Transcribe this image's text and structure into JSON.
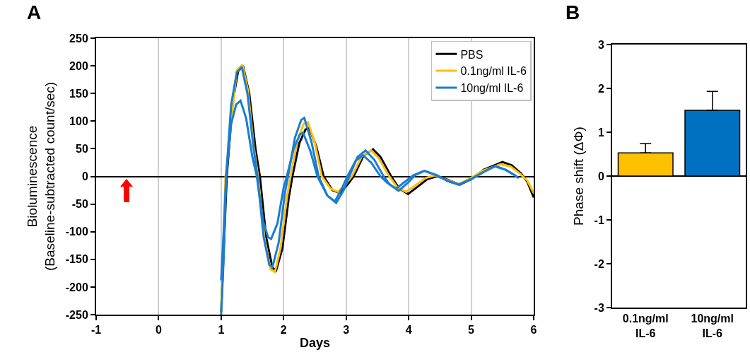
{
  "chart_data": [
    {
      "type": "line",
      "title": "A",
      "xlabel": "Days",
      "ylabel": "Bioluminescence\n(Baseline-subtracted count/sec)",
      "xlim": [
        -1,
        6
      ],
      "xticks": [
        -1,
        0,
        1,
        2,
        3,
        4,
        5,
        6
      ],
      "ylim": [
        -250,
        250
      ],
      "yticks": [
        -250,
        -200,
        -150,
        -100,
        -50,
        0,
        50,
        100,
        150,
        200,
        250
      ],
      "grid": "x",
      "legend": "top right",
      "series": [
        {
          "name": "PBS",
          "color": "#000000",
          "x": [
            1,
            1.09,
            1.18,
            1.27,
            1.35,
            1.45,
            1.55,
            1.62,
            1.72,
            1.82,
            1.88,
            1.98,
            2.08,
            2.14,
            2.25,
            2.35,
            2.41,
            2.52,
            2.64,
            2.78,
            2.9,
            3.02,
            3.12,
            3.28,
            3.43,
            3.55,
            3.72,
            3.85,
            3.99,
            4.15,
            4.3,
            4.45,
            4.6,
            4.82,
            5.0,
            5.2,
            5.5,
            5.65,
            5.8,
            5.9,
            6
          ],
          "values": [
            -245,
            0,
            130,
            190,
            200,
            150,
            50,
            0,
            -110,
            -165,
            -170,
            -130,
            -40,
            0,
            60,
            85,
            87,
            55,
            0,
            -25,
            -30,
            -15,
            0,
            38,
            49,
            35,
            0,
            -22,
            -32,
            -18,
            -5,
            0,
            -5,
            -15,
            -5,
            12,
            26,
            20,
            5,
            -10,
            -38
          ]
        },
        {
          "name": "0.1ng/ml IL-6",
          "color": "#ffc000",
          "x": [
            1,
            1.07,
            1.25,
            1.34,
            1.43,
            1.52,
            1.59,
            1.69,
            1.79,
            1.86,
            1.95,
            2.05,
            2.11,
            2.22,
            2.32,
            2.39,
            2.5,
            2.61,
            2.75,
            2.87,
            2.99,
            3.09,
            3.25,
            3.4,
            3.52,
            3.69,
            3.82,
            3.96,
            4.12,
            4.27,
            4.42,
            4.58,
            4.8,
            4.98,
            5.18,
            5.47,
            5.63,
            5.78,
            5.9,
            6
          ],
          "values": [
            -245,
            0,
            192,
            202,
            155,
            55,
            0,
            -110,
            -168,
            -173,
            -130,
            -40,
            0,
            65,
            95,
            98,
            60,
            0,
            -22,
            -28,
            -14,
            0,
            36,
            47,
            33,
            0,
            -20,
            -28,
            -15,
            -3,
            2,
            -5,
            -14,
            -4,
            10,
            22,
            18,
            5,
            -8,
            -30
          ]
        },
        {
          "name": "10ng/ml IL-6",
          "color": "#1a7dd0",
          "x": [
            1,
            1.04,
            1.08,
            1.16,
            1.25,
            1.33,
            1.42,
            1.52,
            1.58,
            1.68,
            1.77,
            1.82,
            1.92,
            2.02,
            2.07,
            2.18,
            2.28,
            2.33,
            2.45,
            2.56,
            2.7,
            2.84,
            2.96,
            3.05,
            3.18,
            3.31,
            3.45,
            3.6,
            3.7,
            3.84,
            4.0,
            4.1,
            4.25,
            4.45,
            4.62,
            4.8,
            5.0,
            5.2,
            5.38,
            5.55,
            5.7,
            5.76
          ],
          "values": [
            -250,
            -150,
            0,
            130,
            188,
            198,
            150,
            50,
            0,
            -110,
            -160,
            -164,
            -120,
            -30,
            0,
            70,
            102,
            106,
            60,
            0,
            -35,
            -48,
            -25,
            0,
            35,
            47,
            30,
            0,
            -15,
            -26,
            -10,
            2,
            10,
            2,
            -8,
            -15,
            -5,
            8,
            19,
            12,
            2,
            -3
          ]
        },
        {
          "color": "#1a7dd0",
          "x": [
            1,
            1.04,
            1.08,
            1.16,
            1.24,
            1.31,
            1.4,
            1.5,
            1.57,
            1.67,
            1.75,
            1.8,
            1.9,
            2.0,
            2.05,
            2.16,
            2.26,
            2.31,
            2.43,
            2.54,
            2.7,
            2.82,
            2.93,
            3.02,
            3.15,
            3.27,
            3.4,
            3.55,
            3.66,
            3.8,
            3.96,
            4.07,
            4.25,
            4.45,
            4.62,
            4.8,
            5.0,
            5.2,
            5.38,
            5.55,
            5.7,
            5.76
          ],
          "values": [
            -188,
            -100,
            0,
            95,
            130,
            137,
            105,
            35,
            0,
            -80,
            -110,
            -113,
            -85,
            -20,
            0,
            50,
            76,
            79,
            45,
            0,
            -35,
            -45,
            -22,
            0,
            28,
            38,
            25,
            0,
            -12,
            -22,
            -8,
            2,
            10,
            2,
            -8,
            -15,
            -5,
            8,
            18,
            12,
            2,
            -3
          ]
        }
      ]
    },
    {
      "type": "bar",
      "title": "B",
      "ylabel": "Phase shift (ΔΦ)",
      "categories": [
        "0.1ng/ml\nIL-6",
        "10ng/ml\nIL-6"
      ],
      "values": [
        0.53,
        1.5
      ],
      "colors": [
        "#ffc000",
        "#0070c0"
      ],
      "errors": [
        [
          0.53,
          0.74
        ],
        [
          1.5,
          1.93
        ]
      ],
      "ylim": [
        -3,
        3
      ],
      "yticks": [
        -3,
        -2,
        -1,
        0,
        1,
        2,
        3
      ]
    }
  ]
}
